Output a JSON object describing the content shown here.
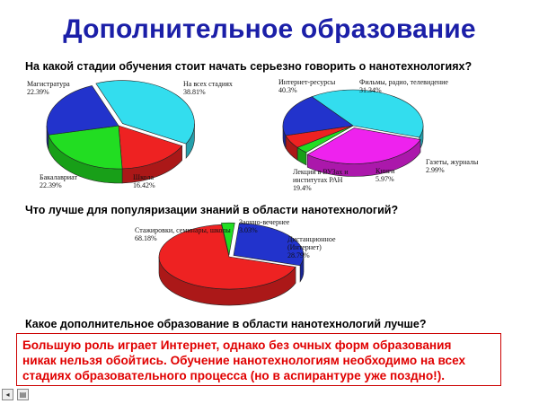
{
  "title": "Дополнительное образование",
  "chart_data": [
    {
      "type": "pie",
      "title": "На какой стадии обучения стоит начать серьезно говорить о нанотехнологиях?",
      "slices": [
        {
          "label": "На всех стадиях",
          "value_label": "38.81%",
          "value": 38.81,
          "color": "#33ddee"
        },
        {
          "label": "Школа",
          "value_label": "16.42%",
          "value": 16.42,
          "color": "#ee2222"
        },
        {
          "label": "Бакалавриат",
          "value_label": "22.39%",
          "value": 22.39,
          "color": "#22dd22"
        },
        {
          "label": "Магистратура",
          "value_label": "22.39%",
          "value": 22.39,
          "color": "#2233cc"
        }
      ]
    },
    {
      "type": "pie",
      "title": "",
      "slices": [
        {
          "label": "Интернет-ресурсы",
          "value_label": "40.3%",
          "value": 40.3,
          "color": "#33ddee"
        },
        {
          "label": "Фильмы, радио, телевидение",
          "value_label": "31.34%",
          "value": 31.34,
          "color": "#ee22ee"
        },
        {
          "label": "Газеты, журналы",
          "value_label": "2.99%",
          "value": 2.99,
          "color": "#22dd22"
        },
        {
          "label": "Книги",
          "value_label": "5.97%",
          "value": 5.97,
          "color": "#ee2222"
        },
        {
          "label": "Лекции в ВУЗах и институтах РАН",
          "value_label": "19.4%",
          "value": 19.4,
          "color": "#2233cc"
        }
      ]
    },
    {
      "type": "pie",
      "title": "Что лучше для популяризации знаний в области нанотехнологий?",
      "slices": [
        {
          "label": "Заочно-вечернее",
          "value_label": "3.03%",
          "value": 3.03,
          "color": "#22dd22"
        },
        {
          "label": "Дистанционное (Интернет)",
          "value_label": "28.79%",
          "value": 28.79,
          "color": "#2233cc"
        },
        {
          "label": "Стажировки, семинары, школы",
          "value_label": "68.18%",
          "value": 68.18,
          "color": "#ee2222"
        }
      ]
    }
  ],
  "question3": "Какое дополнительное образование в области нанотехнологий лучше?",
  "conclusion": {
    "line1": "Большую роль играет Интернет, однако без очных форм образования",
    "line2": "никак нельзя обойтись. Обучение нанотехнологиям необходимо на всех",
    "line3": "стадиях образовательного процесса (но в аспирантуре уже поздно!)."
  }
}
